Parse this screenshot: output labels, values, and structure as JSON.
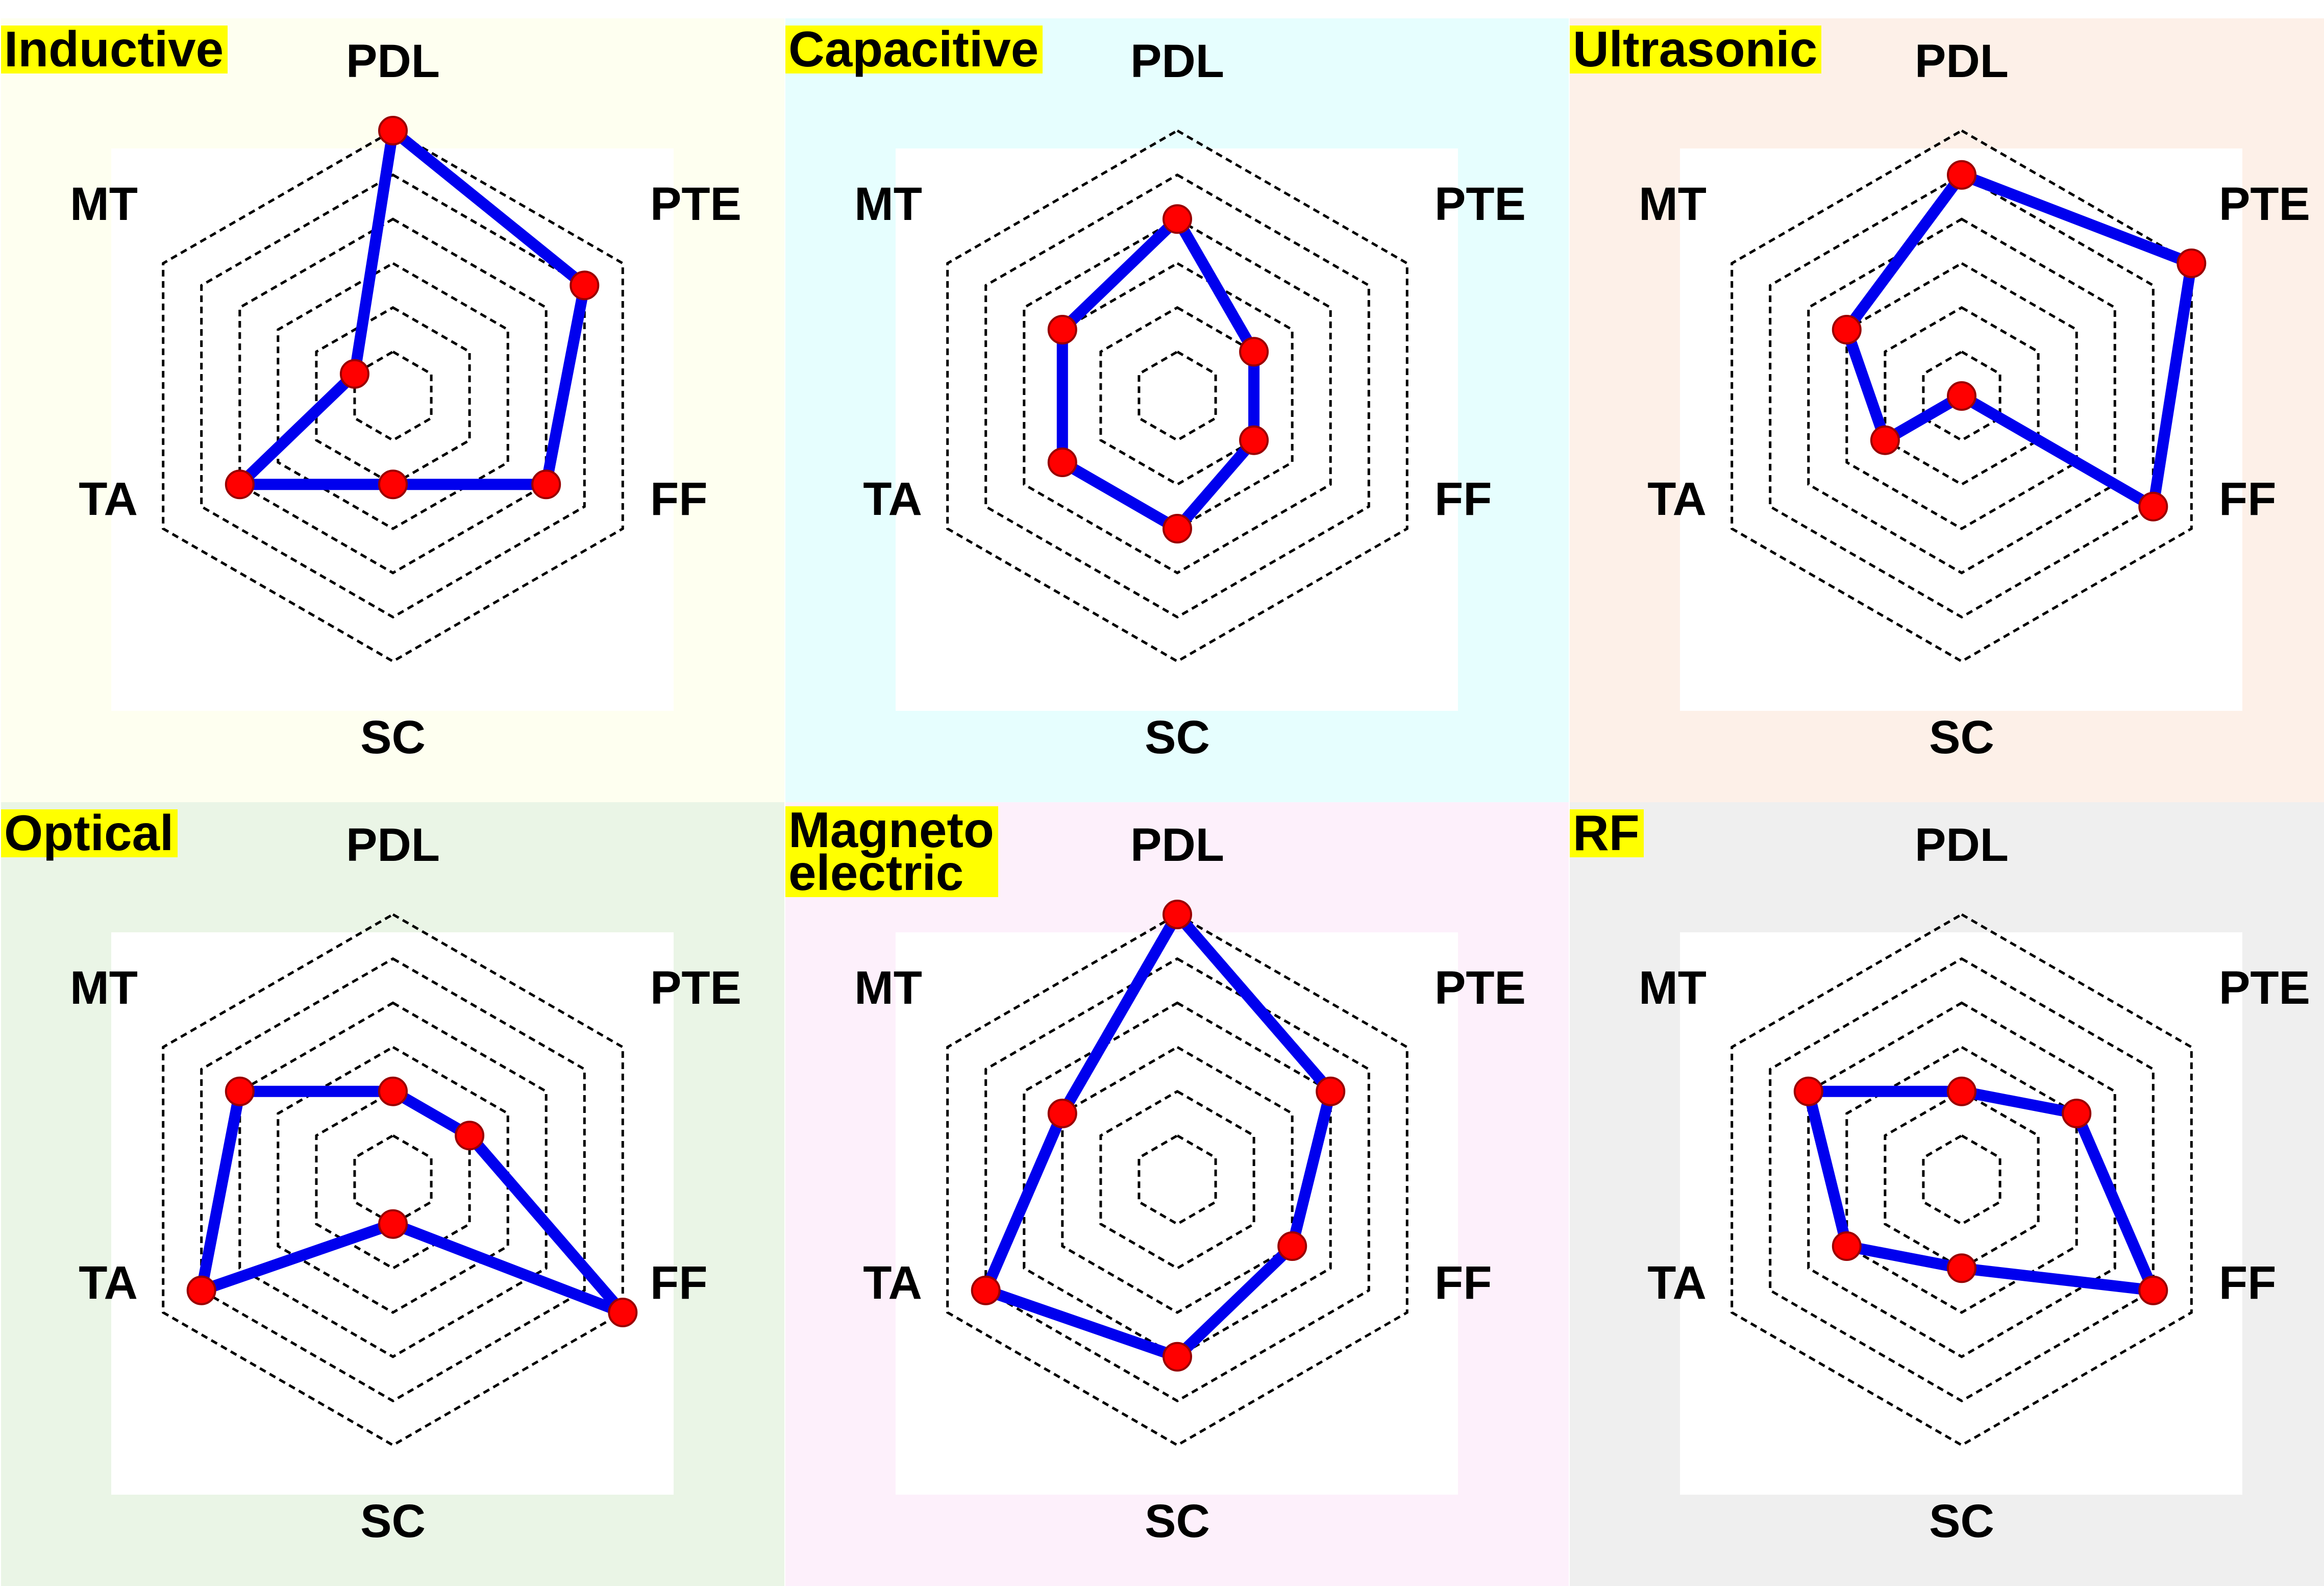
{
  "colors": {
    "polygon_line": "#0000ee",
    "marker_fill": "#ff0000",
    "marker_edge": "#990000",
    "grid_line": "#000000",
    "title_bg": "#ffff00"
  },
  "chart_data": [
    {
      "type": "radar",
      "title": "Inductive",
      "background": "#fefff0",
      "axes": [
        "PDL",
        "PTE",
        "FF",
        "SC",
        "TA",
        "MT"
      ],
      "range": [
        0,
        6
      ],
      "rings": [
        1,
        2,
        3,
        4,
        5,
        6
      ],
      "values": [
        6,
        5,
        4,
        2,
        4,
        1
      ]
    },
    {
      "type": "radar",
      "title": "Capacitive",
      "background": "#e6fefe",
      "axes": [
        "PDL",
        "PTE",
        "FF",
        "SC",
        "TA",
        "MT"
      ],
      "range": [
        0,
        6
      ],
      "rings": [
        1,
        2,
        3,
        4,
        5,
        6
      ],
      "values": [
        4,
        2,
        2,
        3,
        3,
        3
      ]
    },
    {
      "type": "radar",
      "title": "Ultrasonic",
      "background": "#fdf0e8",
      "axes": [
        "PDL",
        "PTE",
        "FF",
        "SC",
        "TA",
        "MT"
      ],
      "range": [
        0,
        6
      ],
      "rings": [
        1,
        2,
        3,
        4,
        5,
        6
      ],
      "values": [
        5,
        6,
        5,
        0,
        2,
        3
      ]
    },
    {
      "type": "radar",
      "title": "Optical",
      "background": "#eaf5e6",
      "axes": [
        "PDL",
        "PTE",
        "FF",
        "SC",
        "TA",
        "MT"
      ],
      "range": [
        0,
        6
      ],
      "rings": [
        1,
        2,
        3,
        4,
        5,
        6
      ],
      "values": [
        2,
        2,
        6,
        1,
        5,
        4
      ]
    },
    {
      "type": "radar",
      "title": "Magneto\nelectric",
      "background": "#fdf0fb",
      "axes": [
        "PDL",
        "PTE",
        "FF",
        "SC",
        "TA",
        "MT"
      ],
      "range": [
        0,
        6
      ],
      "rings": [
        1,
        2,
        3,
        4,
        5,
        6
      ],
      "values": [
        6,
        4,
        3,
        4,
        5,
        3
      ]
    },
    {
      "type": "radar",
      "title": "RF",
      "background": "#efefef",
      "axes": [
        "PDL",
        "PTE",
        "FF",
        "SC",
        "TA",
        "MT"
      ],
      "range": [
        0,
        6
      ],
      "rings": [
        1,
        2,
        3,
        4,
        5,
        6
      ],
      "values": [
        2,
        3,
        5,
        2,
        3,
        4
      ]
    }
  ]
}
